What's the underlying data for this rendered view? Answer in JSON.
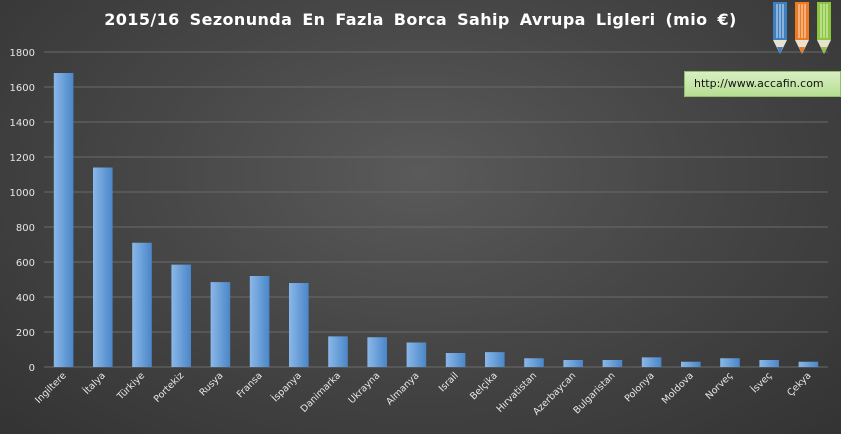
{
  "chart_data": {
    "type": "bar",
    "title": "2015/16 Sezonunda En Fazla Borca Sahip Avrupa Ligleri (mio €)",
    "categories": [
      "Ingiltere",
      "İtalya",
      "Türkiye",
      "Portekiz",
      "Rusya",
      "Fransa",
      "İspanya",
      "Danimarka",
      "Ukrayna",
      "Almanya",
      "Israil",
      "Belçika",
      "Hırvatistan",
      "Azerbaycan",
      "Bulgaristan",
      "Polonya",
      "Moldova",
      "Norveç",
      "İsveç",
      "Çekya"
    ],
    "values": [
      1680,
      1140,
      710,
      585,
      485,
      520,
      480,
      175,
      170,
      140,
      80,
      85,
      50,
      40,
      40,
      55,
      30,
      50,
      40,
      30
    ],
    "ylim": [
      0,
      1800
    ],
    "yticks": [
      0,
      200,
      400,
      600,
      800,
      1000,
      1200,
      1400,
      1600,
      1800
    ],
    "grid": true,
    "legend": "none",
    "colors": {
      "bar_top": "#8ab8e8",
      "bar_bottom": "#4a86c8",
      "grid": "#6a6a6a"
    }
  },
  "watermark": {
    "url": "http://www.accafin.com"
  },
  "logo": {
    "colors": [
      "#3d7fc1",
      "#ee7a22",
      "#8cc63f"
    ]
  }
}
